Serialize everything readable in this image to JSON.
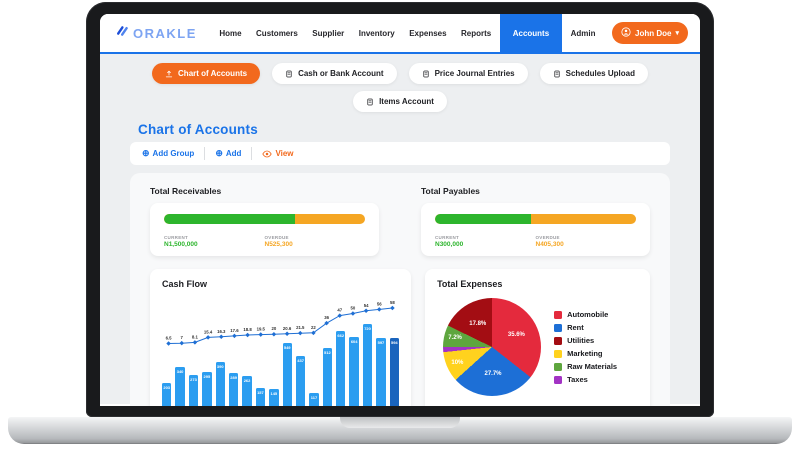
{
  "window": {
    "brand": "ORAKLE"
  },
  "nav": {
    "items": [
      {
        "label": "Home",
        "active": false
      },
      {
        "label": "Customers",
        "active": false
      },
      {
        "label": "Supplier",
        "active": false
      },
      {
        "label": "Inventory",
        "active": false
      },
      {
        "label": "Expenses",
        "active": false
      },
      {
        "label": "Reports",
        "active": false
      },
      {
        "label": "Accounts",
        "active": true
      },
      {
        "label": "Admin",
        "active": false
      }
    ],
    "user": {
      "name": "John Doe",
      "icon": "user-avatar-icon",
      "caret": "▾"
    }
  },
  "tabs": {
    "row1": [
      {
        "label": "Chart of Accounts",
        "icon": "bank-upload-icon",
        "active": true
      },
      {
        "label": "Cash or Bank Account",
        "icon": "ledger-icon",
        "active": false
      },
      {
        "label": "Price Journal Entries",
        "icon": "journal-icon",
        "active": false
      },
      {
        "label": "Schedules Upload",
        "icon": "file-icon",
        "active": false
      }
    ],
    "row2": [
      {
        "label": "Items Account",
        "icon": "file-icon",
        "active": false
      }
    ]
  },
  "page": {
    "title": "Chart of Accounts"
  },
  "toolbar": {
    "items": [
      {
        "label": "Add Group",
        "icon": "plus-circle-icon",
        "color": "blue"
      },
      {
        "label": "Add",
        "icon": "plus-circle-icon",
        "color": "blue"
      },
      {
        "label": "View",
        "icon": "eye-icon",
        "color": "orange"
      }
    ],
    "plus_glyph": "⊕"
  },
  "summary": {
    "cards": [
      {
        "title": "Total Receivables",
        "current_label": "CURRENT",
        "current_value": "N1,500,000",
        "overdue_label": "OVERDUE",
        "overdue_value": "N525,300",
        "current_pct": 65
      },
      {
        "title": "Total Payables",
        "current_label": "CURRENT",
        "current_value": "N300,000",
        "overdue_label": "OVERDUE",
        "overdue_value": "N405,300",
        "current_pct": 48
      }
    ],
    "current_color": "#2db52d",
    "overdue_color": "#f5a623"
  },
  "chart_data": [
    {
      "type": "bar",
      "subtype": "bar-line-combo",
      "title": "Cash Flow",
      "bar_series": {
        "name": "cash flow amount",
        "values": [
          203,
          340,
          273,
          295,
          390,
          289,
          262,
          157,
          145,
          549,
          437,
          117,
          512,
          662,
          604,
          720,
          597,
          594
        ]
      },
      "line_series": {
        "name": "cumulative trend",
        "values": [
          6.5,
          7,
          8.1,
          15.4,
          16.3,
          17.6,
          18.8,
          19.5,
          20,
          20.6,
          21.5,
          22,
          36,
          47,
          50,
          54,
          56,
          58
        ]
      },
      "bar_ylim": [
        0,
        720
      ],
      "line_ylim": [
        0,
        58
      ],
      "bar_color": "#2b9df0",
      "last_bar_color": "#1a64bd",
      "line_color": "#1f6fd4",
      "grid": false,
      "axis_labels_visible": false
    },
    {
      "type": "pie",
      "title": "Total Expenses",
      "slices": [
        {
          "label": "Automobile",
          "pct": 35.6,
          "color": "#e42a3d"
        },
        {
          "label": "Rent",
          "pct": 27.7,
          "color": "#1d6fd6"
        },
        {
          "label": "Utilities",
          "pct": 17.8,
          "color": "#a30d13"
        },
        {
          "label": "Marketing",
          "pct": 10,
          "color": "#ffd21e"
        },
        {
          "label": "Raw Materials",
          "pct": 7.2,
          "color": "#5ea63e"
        },
        {
          "label": "Taxes",
          "pct": 1.7,
          "color": "#a233c4"
        }
      ],
      "draw_order": [
        0,
        1,
        3,
        5,
        4,
        2
      ],
      "legend_position": "right",
      "labels_shown_for_pct_at_least": 5
    }
  ],
  "colors": {
    "accent_blue": "#1a73e8",
    "accent_orange": "#f2691d",
    "logo_blue": "#7da4f2"
  }
}
